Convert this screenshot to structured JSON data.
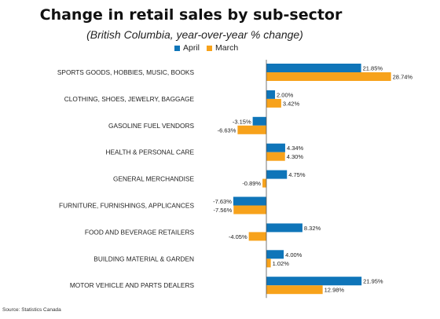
{
  "title": "Change in retail sales by sub-sector",
  "subtitle": "(British Columbia, year-over-year % change)",
  "source": "Source: Statistics Canada",
  "colors": {
    "April": "#0f75b9",
    "March": "#f7a21b"
  },
  "chart_data": {
    "type": "bar",
    "orientation": "horizontal",
    "categories": [
      "SPORTS GOODS, HOBBIES, MUSIC, BOOKS",
      "CLOTHING, SHOES, JEWELRY, BAGGAGE",
      "GASOLINE FUEL VENDORS",
      "HEALTH & PERSONAL CARE",
      "GENERAL MERCHANDISE",
      "FURNITURE, FURNISHINGS, APPLICANCES",
      "FOOD AND BEVERAGE RETAILERS",
      "BUILDING MATERIAL & GARDEN",
      "MOTOR VEHICLE AND PARTS DEALERS"
    ],
    "series": [
      {
        "name": "April",
        "values": [
          21.85,
          2.0,
          -3.15,
          4.34,
          4.75,
          -7.63,
          8.32,
          4.0,
          21.95
        ],
        "labels": [
          "21.85%",
          "2.00%",
          "-3.15%",
          "4.34%",
          "4.75%",
          "-7.63%",
          "8.32%",
          "4.00%",
          "21.95%"
        ]
      },
      {
        "name": "March",
        "values": [
          28.74,
          3.42,
          -6.63,
          4.3,
          -0.89,
          -7.56,
          -4.05,
          1.02,
          12.98
        ],
        "labels": [
          "28.74%",
          "3.42%",
          "-6.63%",
          "4.30%",
          "-0.89%",
          "-7.56%",
          "-4.05%",
          "1.02%",
          "12.98%"
        ]
      }
    ],
    "legend_position": "top",
    "grid": false
  }
}
